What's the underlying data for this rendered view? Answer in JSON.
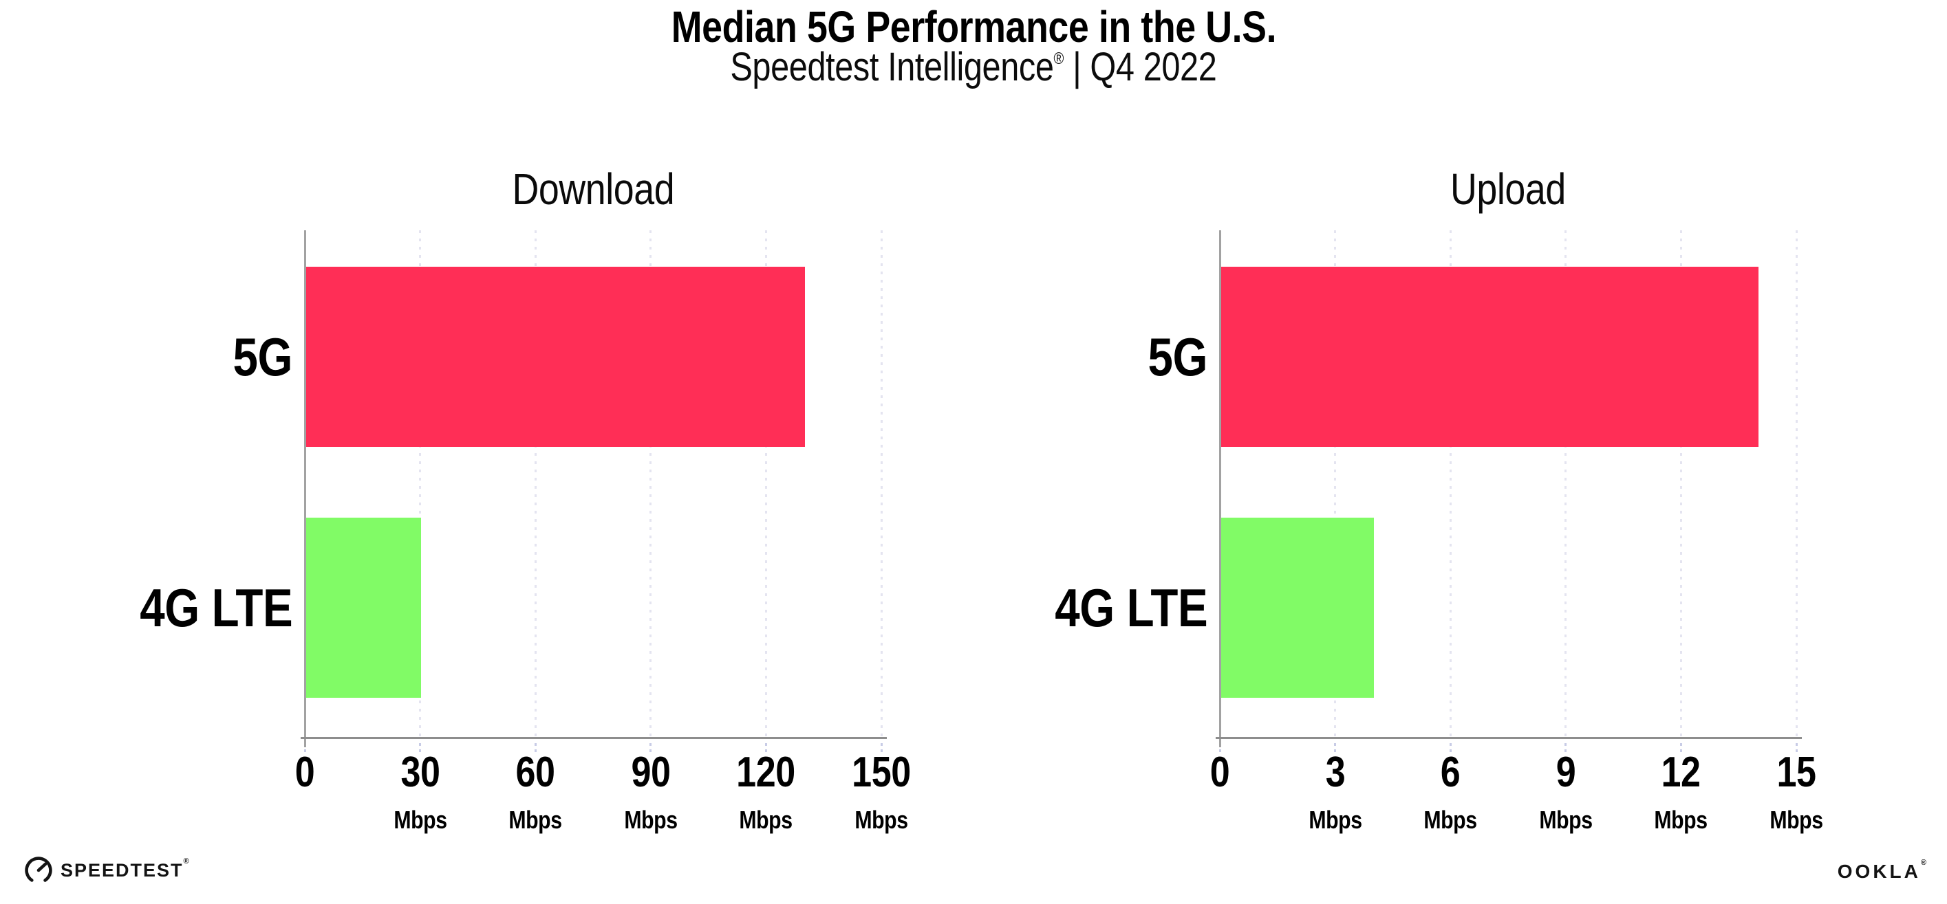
{
  "header": {
    "title": "Median 5G Performance in the U.S.",
    "subtitle_brand": "Speedtest Intelligence",
    "subtitle_reg": "®",
    "subtitle_rest": " | Q4 2022"
  },
  "chart_data": [
    {
      "type": "bar",
      "orientation": "horizontal",
      "title": "Download",
      "categories": [
        "5G",
        "4G LTE"
      ],
      "values": [
        130,
        30
      ],
      "unit": "Mbps",
      "xlim": [
        0,
        150
      ],
      "xticks": [
        0,
        30,
        60,
        90,
        120,
        150
      ],
      "bar_colors": [
        "#ff2e56",
        "#81fb66"
      ],
      "grid": "vertical-dotted",
      "legend": "none"
    },
    {
      "type": "bar",
      "orientation": "horizontal",
      "title": "Upload",
      "categories": [
        "5G",
        "4G LTE"
      ],
      "values": [
        14,
        4
      ],
      "unit": "Mbps",
      "xlim": [
        0,
        15
      ],
      "xticks": [
        0,
        3,
        6,
        9,
        12,
        15
      ],
      "bar_colors": [
        "#ff2e56",
        "#81fb66"
      ],
      "grid": "vertical-dotted",
      "legend": "none"
    }
  ],
  "footer": {
    "speedtest": "SPEEDTEST",
    "speedtest_reg": "®",
    "speedtest_icon": "speedtest-gauge-icon",
    "ookla": "OOKLA",
    "ookla_reg": "®"
  },
  "colors": {
    "bar_5g": "#ff2e56",
    "bar_4g_lte": "#81fb66",
    "axis": "#8d8d8d",
    "gridline": "#e4e4f0",
    "text": "#000000",
    "background": "#ffffff"
  }
}
